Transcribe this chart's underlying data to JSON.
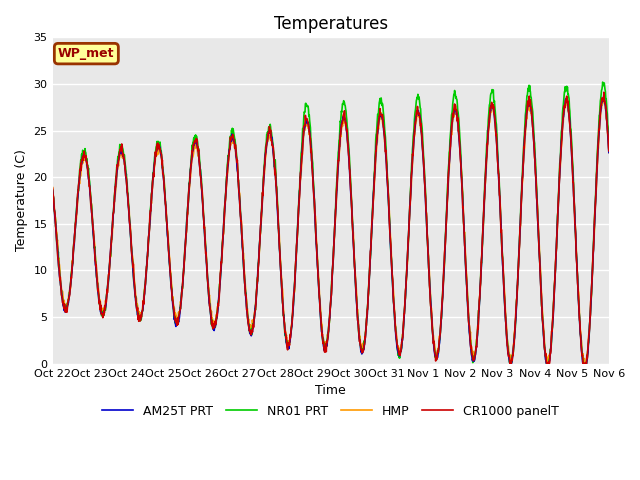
{
  "title": "Temperatures",
  "xlabel": "Time",
  "ylabel": "Temperature (C)",
  "ylim": [
    0,
    35
  ],
  "background_color": "#ffffff",
  "plot_bg_color": "#e8e8e8",
  "grid_color": "#ffffff",
  "series": {
    "CR1000_panelT": {
      "color": "#cc0000",
      "label": "CR1000 panelT",
      "lw": 1.2
    },
    "HMP": {
      "color": "#ff9900",
      "label": "HMP",
      "lw": 1.2
    },
    "NR01_PRT": {
      "color": "#00cc00",
      "label": "NR01 PRT",
      "lw": 1.2
    },
    "AM25T_PRT": {
      "color": "#0000cc",
      "label": "AM25T PRT",
      "lw": 1.2
    }
  },
  "xtick_labels": [
    "Oct 22",
    "Oct 23",
    "Oct 24",
    "Oct 25",
    "Oct 26",
    "Oct 27",
    "Oct 28",
    "Oct 29",
    "Oct 30",
    "Oct 31",
    "Nov 1",
    "Nov 2",
    "Nov 3",
    "Nov 4",
    "Nov 5",
    "Nov 6"
  ],
  "xtick_pos": [
    0,
    1,
    2,
    3,
    4,
    5,
    6,
    7,
    8,
    9,
    10,
    11,
    12,
    13,
    14,
    15
  ],
  "ytick_vals": [
    0,
    5,
    10,
    15,
    20,
    25,
    30,
    35
  ],
  "station_label": "WP_met",
  "station_label_bg": "#ffff99",
  "station_label_border": "#993300",
  "station_label_text_color": "#990000",
  "title_fontsize": 12,
  "axis_fontsize": 9,
  "tick_fontsize": 8,
  "legend_fontsize": 9
}
